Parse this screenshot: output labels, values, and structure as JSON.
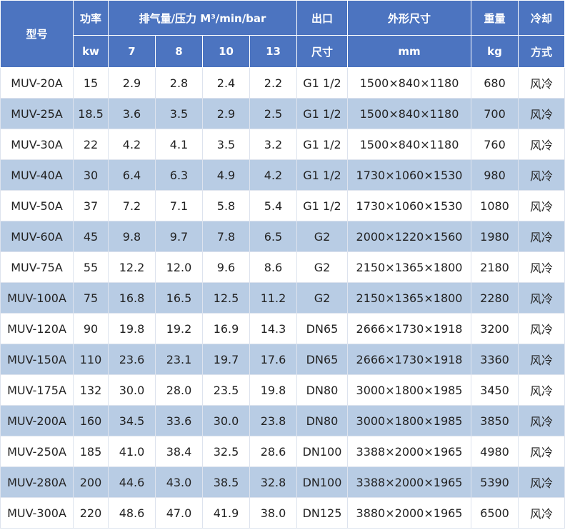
{
  "table": {
    "header": {
      "model": "型号",
      "power": "功率",
      "power_unit": "kw",
      "flow": "排气量/压力 M³/min/bar",
      "pressures": [
        "7",
        "8",
        "10",
        "13"
      ],
      "outlet_top": "出口",
      "outlet_bottom": "尺寸",
      "dims": "外形尺寸",
      "dims_unit": "mm",
      "weight": "重量",
      "weight_unit": "kg",
      "cooling_top": "冷却",
      "cooling_bottom": "方式"
    },
    "rows": [
      [
        "MUV-20A",
        "15",
        "2.9",
        "2.8",
        "2.4",
        "2.2",
        "G1 1/2",
        "1500×840×1180",
        "680",
        "风冷"
      ],
      [
        "MUV-25A",
        "18.5",
        "3.6",
        "3.5",
        "2.9",
        "2.5",
        "G1 1/2",
        "1500×840×1180",
        "700",
        "风冷"
      ],
      [
        "MUV-30A",
        "22",
        "4.2",
        "4.1",
        "3.5",
        "3.2",
        "G1 1/2",
        "1500×840×1180",
        "760",
        "风冷"
      ],
      [
        "MUV-40A",
        "30",
        "6.4",
        "6.3",
        "4.9",
        "4.2",
        "G1 1/2",
        "1730×1060×1530",
        "980",
        "风冷"
      ],
      [
        "MUV-50A",
        "37",
        "7.2",
        "7.1",
        "5.8",
        "5.4",
        "G1 1/2",
        "1730×1060×1530",
        "1080",
        "风冷"
      ],
      [
        "MUV-60A",
        "45",
        "9.8",
        "9.7",
        "7.8",
        "6.5",
        "G2",
        "2000×1220×1560",
        "1980",
        "风冷"
      ],
      [
        "MUV-75A",
        "55",
        "12.2",
        "12.0",
        "9.6",
        "8.6",
        "G2",
        "2150×1365×1800",
        "2180",
        "风冷"
      ],
      [
        "MUV-100A",
        "75",
        "16.8",
        "16.5",
        "12.5",
        "11.2",
        "G2",
        "2150×1365×1800",
        "2280",
        "风冷"
      ],
      [
        "MUV-120A",
        "90",
        "19.8",
        "19.2",
        "16.9",
        "14.3",
        "DN65",
        "2666×1730×1918",
        "3200",
        "风冷"
      ],
      [
        "MUV-150A",
        "110",
        "23.6",
        "23.1",
        "19.7",
        "17.6",
        "DN65",
        "2666×1730×1918",
        "3360",
        "风冷"
      ],
      [
        "MUV-175A",
        "132",
        "30.0",
        "28.0",
        "23.5",
        "19.8",
        "DN80",
        "3000×1800×1985",
        "3450",
        "风冷"
      ],
      [
        "MUV-200A",
        "160",
        "34.5",
        "33.6",
        "30.0",
        "23.8",
        "DN80",
        "3000×1800×1985",
        "3850",
        "风冷"
      ],
      [
        "MUV-250A",
        "185",
        "41.0",
        "38.4",
        "32.5",
        "28.6",
        "DN100",
        "3388×2000×1965",
        "4980",
        "风冷"
      ],
      [
        "MUV-280A",
        "200",
        "44.6",
        "43.0",
        "38.5",
        "32.8",
        "DN100",
        "3388×2000×1965",
        "5390",
        "风冷"
      ],
      [
        "MUV-300A",
        "220",
        "48.6",
        "47.0",
        "41.9",
        "38.0",
        "DN125",
        "3880×2000×1965",
        "6500",
        "风冷"
      ]
    ]
  },
  "colors": {
    "header_bg": "#4c74c0",
    "row_alt_bg": "#b8cce4",
    "row_bg": "#ffffff"
  }
}
